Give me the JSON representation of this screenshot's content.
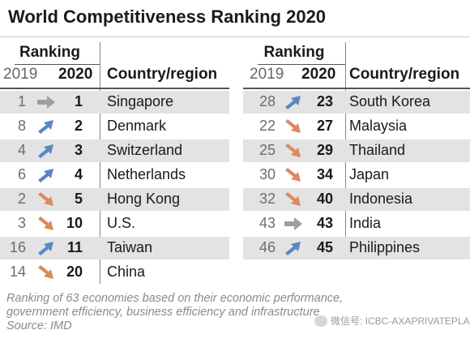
{
  "chart_data": {
    "type": "table",
    "title": "World Competitiveness Ranking 2020",
    "columns": {
      "group": "Ranking",
      "prev_year": "2019",
      "curr_year": "2020",
      "name": "Country/region"
    },
    "colors": {
      "up": "#5b86c6",
      "down": "#dd8a5e",
      "same": "#9e9e9e",
      "row_shade": "#e3e3e3"
    },
    "tables": [
      {
        "rows": [
          {
            "prev": 1,
            "curr": 1,
            "name": "Singapore"
          },
          {
            "prev": 8,
            "curr": 2,
            "name": "Denmark"
          },
          {
            "prev": 4,
            "curr": 3,
            "name": "Switzerland"
          },
          {
            "prev": 6,
            "curr": 4,
            "name": "Netherlands"
          },
          {
            "prev": 2,
            "curr": 5,
            "name": "Hong Kong"
          },
          {
            "prev": 3,
            "curr": 10,
            "name": "U.S."
          },
          {
            "prev": 16,
            "curr": 11,
            "name": "Taiwan"
          },
          {
            "prev": 14,
            "curr": 20,
            "name": "China"
          }
        ]
      },
      {
        "rows": [
          {
            "prev": 28,
            "curr": 23,
            "name": "South Korea"
          },
          {
            "prev": 22,
            "curr": 27,
            "name": "Malaysia"
          },
          {
            "prev": 25,
            "curr": 29,
            "name": "Thailand"
          },
          {
            "prev": 30,
            "curr": 34,
            "name": "Japan"
          },
          {
            "prev": 32,
            "curr": 40,
            "name": "Indonesia"
          },
          {
            "prev": 43,
            "curr": 43,
            "name": "India"
          },
          {
            "prev": 46,
            "curr": 45,
            "name": "Philippines"
          }
        ]
      }
    ],
    "footnote": [
      "Ranking of 63 economies based on their economic performance,",
      "government efficiency, business efficiency and infrastructure",
      "Source: IMD"
    ]
  },
  "watermark": {
    "icon": "wechat-icon",
    "text": "微信号: ICBC-AXAPRIVATEPLAN"
  }
}
